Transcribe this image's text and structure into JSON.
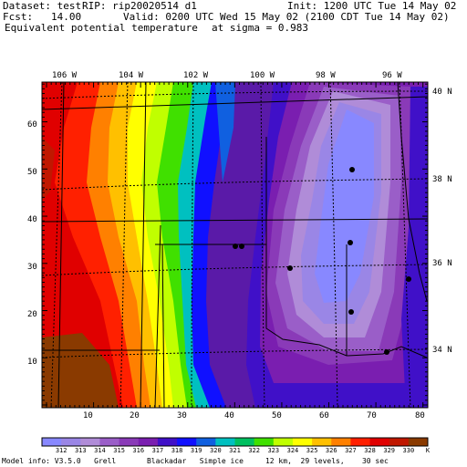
{
  "header": {
    "dataset": "Dataset: test",
    "rip": "RIP: rip20020514 d1",
    "init": "Init: 1200 UTC Tue 14 May 02",
    "fcst": "Fcst:   14.00",
    "valid": "Valid: 0200 UTC Wed 15 May 02 (2100 CDT Tue 14 May 02)",
    "field": "Equivalent potential temperature",
    "level": "at sigma = 0.983"
  },
  "map": {
    "lon_labels": [
      "106 W",
      "104 W",
      "102 W",
      "100 W",
      "98 W",
      "96 W"
    ],
    "lat_labels": [
      "40 N",
      "38 N",
      "36 N",
      "34 N"
    ],
    "grid_x_ticks": [
      "10",
      "20",
      "30",
      "40",
      "50",
      "60",
      "70",
      "80"
    ],
    "grid_y_ticks": [
      "60",
      "50",
      "40",
      "30",
      "20",
      "10"
    ]
  },
  "colorbar": {
    "values": [
      "312",
      "313",
      "314",
      "315",
      "316",
      "317",
      "318",
      "319",
      "320",
      "321",
      "322",
      "323",
      "324",
      "325",
      "326",
      "327",
      "328",
      "329",
      "330"
    ],
    "unit": "K",
    "colors": [
      "#8888ff",
      "#9a86e6",
      "#b08cd8",
      "#9a5ec8",
      "#8a3ab8",
      "#7a1eb0",
      "#4010c8",
      "#1010ff",
      "#1060e0",
      "#00c0c0",
      "#00c060",
      "#40e000",
      "#c0ff00",
      "#ffff00",
      "#ffc000",
      "#ff8000",
      "#ff2000",
      "#e00000",
      "#c01800",
      "#8a3a00"
    ]
  },
  "footer": {
    "model_info": "Model info: V3.5.0   Grell       Blackadar   Simple ice     12 km,  29 levels,    30 sec"
  }
}
